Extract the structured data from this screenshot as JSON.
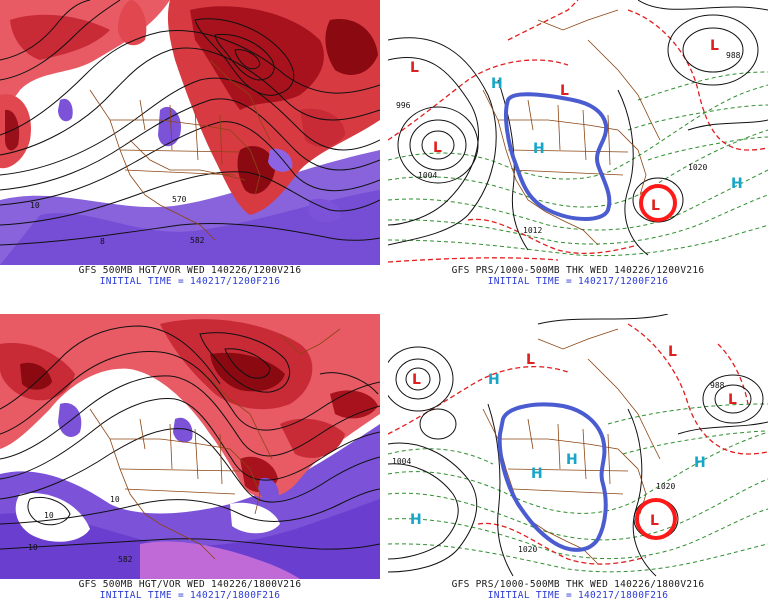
{
  "panels": [
    {
      "id": "top-left",
      "type": "500mb height / vorticity",
      "caption_line1": "GFS 500MB HGT/VOR WED 140226/1200V216",
      "caption_line2": "INITIAL TIME = 140217/1200F216",
      "labels": [
        "570",
        "582",
        "8",
        "10"
      ]
    },
    {
      "id": "top-right",
      "type": "mslp / 1000-500mb thickness",
      "caption_line1": "GFS PRS/1000-500MB THK WED 140226/1200V216",
      "caption_line2": "INITIAL TIME = 140217/1200F216",
      "labels": [
        "996",
        "1020",
        "1012",
        "988",
        "1004"
      ],
      "symbols": [
        "L",
        "L",
        "L",
        "L",
        "L",
        "H",
        "H",
        "H"
      ]
    },
    {
      "id": "bottom-left",
      "type": "500mb height / vorticity",
      "caption_line1": "GFS 500MB HGT/VOR WED 140226/1800V216",
      "caption_line2": "INITIAL TIME = 140217/1800F216",
      "labels": [
        "582",
        "10",
        "10",
        "10"
      ]
    },
    {
      "id": "bottom-right",
      "type": "mslp / 1000-500mb thickness",
      "caption_line1": "GFS PRS/1000-500MB THK WED 140226/1800V216",
      "caption_line2": "INITIAL TIME = 140217/1800F216",
      "labels": [
        "1004",
        "988",
        "1020",
        "1020"
      ],
      "symbols": [
        "L",
        "L",
        "L",
        "L",
        "L",
        "H",
        "H",
        "H",
        "H",
        "H"
      ]
    }
  ],
  "colors": {
    "vorticity_red": "#d9363e",
    "vorticity_dark": "#8b0a12",
    "vorticity_purple": "#7b52d8",
    "contour_black": "#111111",
    "thickness_green": "#2f8f2f",
    "thickness_red": "#e02020",
    "border_brown": "#8b4513",
    "annotation_blue": "#4a5ccf",
    "annotation_red": "#ff1a1a",
    "high_cyan": "#17a6c9",
    "caption_blue": "#2b3bd6"
  }
}
